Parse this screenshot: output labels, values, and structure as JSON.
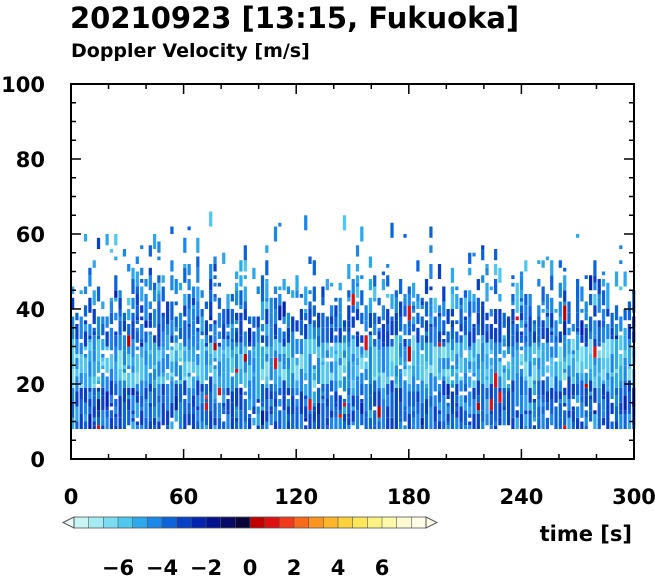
{
  "chart_data": {
    "type": "heatmap",
    "title": "20210923 [13:15, Fukuoka]",
    "subtitle": "Doppler Velocity [m/s]",
    "xlabel": "time [s]",
    "ylabel": "",
    "xlim": [
      0,
      300
    ],
    "ylim": [
      0,
      100
    ],
    "x_ticks": [
      "0",
      "60",
      "120",
      "180",
      "240",
      "300"
    ],
    "y_ticks": [
      "0",
      "20",
      "40",
      "60",
      "80",
      "100"
    ],
    "x_tick_values": [
      0,
      60,
      120,
      180,
      240,
      300
    ],
    "y_tick_values": [
      0,
      20,
      40,
      60,
      80,
      100
    ],
    "grid": false,
    "colorbar": {
      "range": [
        -8,
        8
      ],
      "labels": [
        "−6",
        "−4",
        "−2",
        "0",
        "2",
        "4",
        "6"
      ],
      "label_values": [
        -6,
        -4,
        -2,
        0,
        2,
        4,
        6
      ],
      "colors": [
        "#c8f4f4",
        "#a4ecf2",
        "#7adcf0",
        "#4ec8ee",
        "#2ca8ec",
        "#1a88e8",
        "#0c64dc",
        "#0840c8",
        "#0424b0",
        "#04128e",
        "#060a66",
        "#0a0538",
        "#c00000",
        "#e01010",
        "#f03a1a",
        "#f86a1a",
        "#fc9420",
        "#fcb628",
        "#fcd23c",
        "#fce65a",
        "#fcf284",
        "#fcf8ac",
        "#fcfad0",
        "#fefce6"
      ],
      "placement": "bottom-left"
    },
    "data_extent": {
      "x_range": [
        0,
        300
      ],
      "y_min": 8,
      "dense_top": 44,
      "sparse_top": 63,
      "isolated_max": 68
    }
  }
}
